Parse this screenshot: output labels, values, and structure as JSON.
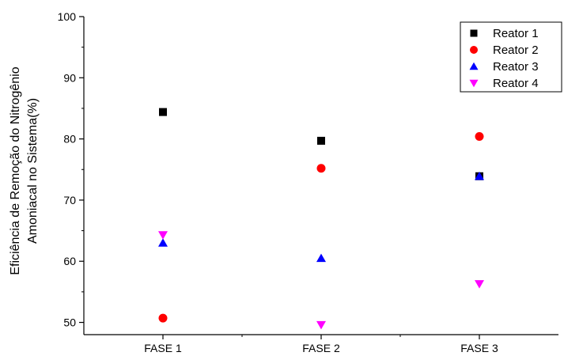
{
  "chart_data": {
    "type": "scatter",
    "categories": [
      "FASE 1",
      "FASE 2",
      "FASE 3"
    ],
    "ylabel_lines": [
      "Eficiência  de Remoção do Nitrogênio",
      "Amoniacal no Sistema(%)"
    ],
    "xlabel": "",
    "ylim": [
      48,
      100
    ],
    "yticks": [
      50,
      60,
      70,
      80,
      90,
      100
    ],
    "grid": false,
    "legend_position": "top-right",
    "series": [
      {
        "name": "Reator 1",
        "marker": "square",
        "color": "#000000",
        "values": [
          84.4,
          79.7,
          73.9
        ]
      },
      {
        "name": "Reator 2",
        "marker": "circle",
        "color": "#ff0000",
        "values": [
          50.7,
          75.2,
          80.4
        ]
      },
      {
        "name": "Reator 3",
        "marker": "triangle-up",
        "color": "#0000ff",
        "values": [
          63.0,
          60.5,
          73.9
        ]
      },
      {
        "name": "Reator 4",
        "marker": "triangle-down",
        "color": "#ff00ff",
        "values": [
          64.3,
          49.6,
          56.3
        ]
      }
    ]
  }
}
